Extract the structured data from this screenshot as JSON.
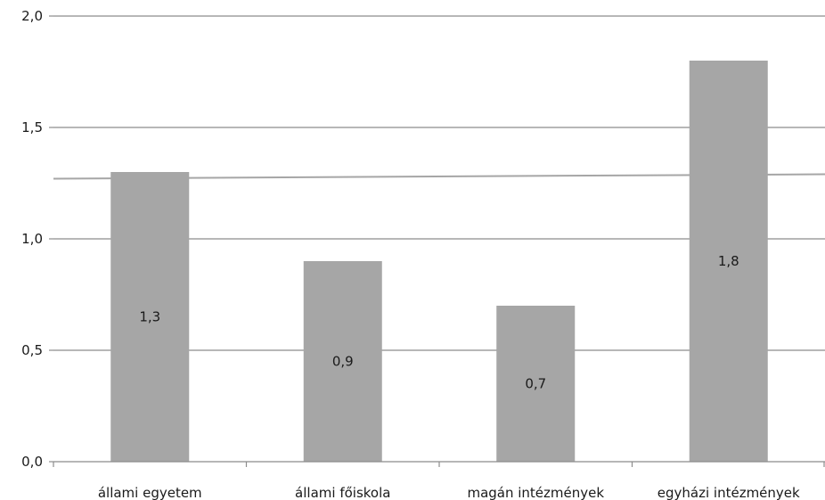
{
  "chart_data": {
    "type": "bar",
    "title": "",
    "xlabel": "",
    "ylabel": "",
    "categories": [
      "állami egyetem",
      "állami főiskola",
      "magán intézmények",
      "egyházi intézmények"
    ],
    "values": [
      1.3,
      0.9,
      0.7,
      1.8
    ],
    "value_labels": [
      "1,3",
      "0,9",
      "0,7",
      "1,8"
    ],
    "ylim": [
      0,
      2.0
    ],
    "yticks": [
      0.0,
      0.5,
      1.0,
      1.5,
      2.0
    ],
    "ytick_labels": [
      "0,0",
      "0,5",
      "1,0",
      "1,5",
      "2,0"
    ],
    "reference_line": {
      "start": 1.27,
      "end": 1.29
    },
    "grid": true,
    "legend": "none",
    "colors": {
      "bar": "#a6a6a6",
      "grid": "#8c8c8c",
      "reference_line": "#a6a6a6",
      "axis": "#8c8c8c",
      "text": "#1a1a1a"
    }
  }
}
